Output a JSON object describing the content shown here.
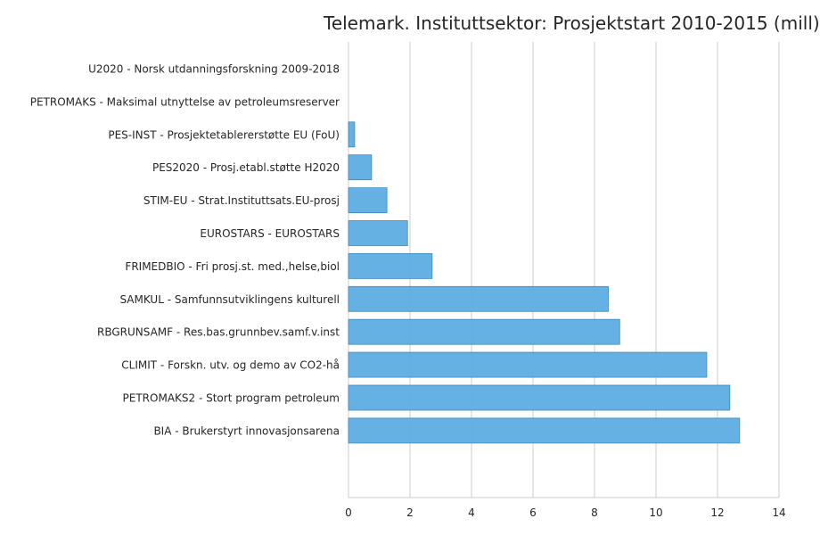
{
  "chart_data": {
    "type": "bar",
    "orientation": "horizontal",
    "title": "Telemark. Instituttsektor: Prosjektstart 2010-2015 (mill)",
    "xlabel": "",
    "ylabel": "",
    "xlim": [
      0,
      14
    ],
    "xticks": [
      0,
      2,
      4,
      6,
      8,
      10,
      12,
      14
    ],
    "grid": "vertical",
    "bar_color": "#5dade2",
    "categories": [
      "U2020 - Norsk utdanningsforskning 2009-2018",
      "PETROMAKS - Maksimal utnyttelse av petroleumsreserver",
      "PES-INST - Prosjektetablererstøtte EU (FoU)",
      "PES2020 - Prosj.etabl.støtte H2020",
      "STIM-EU - Strat.Instituttsats.EU-prosj",
      "EUROSTARS - EUROSTARS",
      "FRIMEDBIO - Fri prosj.st. med.,helse,biol",
      "SAMKUL - Samfunnsutviklingens kulturell",
      "RBGRUNSAMF - Res.bas.grunnbev.samf.v.inst",
      "CLIMIT - Forskn. utv. og demo av CO2-hå",
      "PETROMAKS2 - Stort program petroleum",
      "BIA - Brukerstyrt innovasjonsarena"
    ],
    "values": [
      0.0,
      0.0,
      0.2,
      0.75,
      1.25,
      1.92,
      2.72,
      8.45,
      8.82,
      11.65,
      12.4,
      12.72
    ]
  }
}
